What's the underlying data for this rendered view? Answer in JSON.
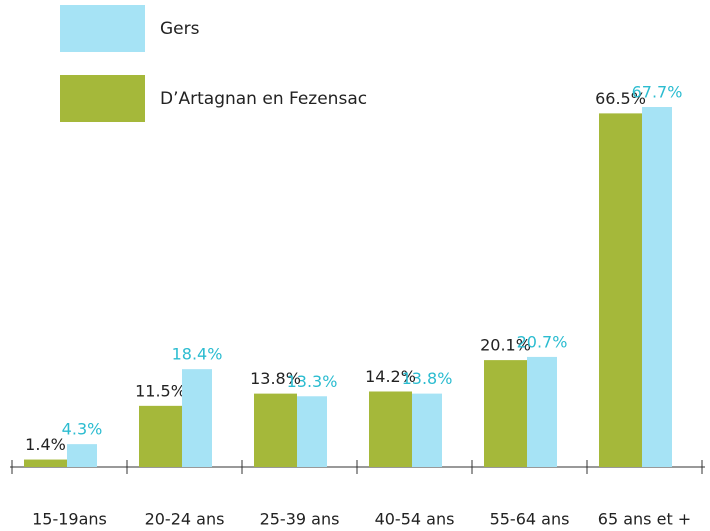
{
  "chart_data": {
    "type": "bar",
    "categories": [
      "15-19ans",
      "20-24 ans",
      "25-39 ans",
      "40-54 ans",
      "55-64 ans",
      "65 ans et +"
    ],
    "series": [
      {
        "name": "D’Artagnan en Fezensac",
        "color": "#a5b83a",
        "values": [
          1.4,
          11.5,
          13.8,
          14.2,
          20.1,
          66.5
        ],
        "value_labels": [
          "1.4%",
          "11.5%",
          "13.8%",
          "14.2%",
          "20.1%",
          "66.5%"
        ]
      },
      {
        "name": "Gers",
        "color": "#a6e3f5",
        "values": [
          4.3,
          18.4,
          13.3,
          13.8,
          20.7,
          67.7
        ],
        "value_labels": [
          "4.3%",
          "18.4%",
          "13.3%",
          "13.8%",
          "20.7%",
          "67.7%"
        ]
      }
    ]
  }
}
